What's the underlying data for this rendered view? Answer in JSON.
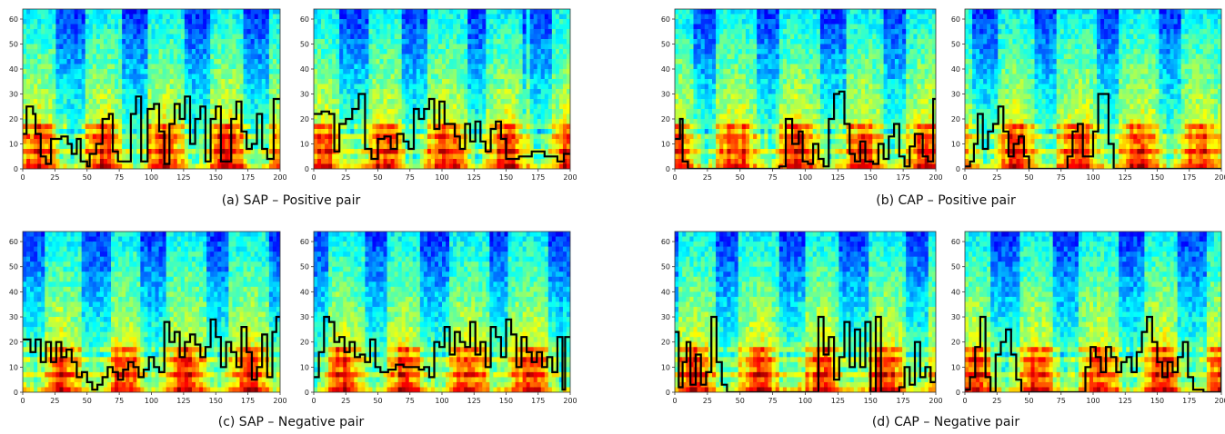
{
  "captions": {
    "a": "(a) SAP – Positive pair",
    "b": "(b) CAP – Positive pair",
    "c": "(c) SAP – Negative pair",
    "d": "(d) CAP – Negative pair"
  },
  "chart_data": [
    {
      "type": "heatmap",
      "group": "a",
      "xticks": [
        0,
        25,
        50,
        75,
        100,
        125,
        150,
        175,
        200
      ],
      "yticks": [
        0,
        10,
        20,
        30,
        40,
        50,
        60
      ],
      "xlim": [
        0,
        200
      ],
      "ylim": [
        0,
        64
      ],
      "curve": [
        [
          0,
          14
        ],
        [
          3,
          25
        ],
        [
          8,
          22
        ],
        [
          10,
          14
        ],
        [
          14,
          5
        ],
        [
          18,
          2
        ],
        [
          22,
          12
        ],
        [
          30,
          13
        ],
        [
          35,
          10
        ],
        [
          38,
          6
        ],
        [
          42,
          12
        ],
        [
          45,
          3
        ],
        [
          50,
          1
        ],
        [
          52,
          6
        ],
        [
          57,
          10
        ],
        [
          62,
          20
        ],
        [
          67,
          22
        ],
        [
          70,
          7
        ],
        [
          74,
          3
        ],
        [
          80,
          3
        ],
        [
          84,
          22
        ],
        [
          88,
          29
        ],
        [
          92,
          3
        ],
        [
          97,
          24
        ],
        [
          102,
          26
        ],
        [
          106,
          15
        ],
        [
          110,
          2
        ],
        [
          114,
          18
        ],
        [
          118,
          26
        ],
        [
          122,
          20
        ],
        [
          126,
          29
        ],
        [
          130,
          10
        ],
        [
          134,
          20
        ],
        [
          138,
          25
        ],
        [
          142,
          3
        ],
        [
          146,
          20
        ],
        [
          150,
          25
        ],
        [
          154,
          3
        ],
        [
          158,
          3
        ],
        [
          162,
          20
        ],
        [
          166,
          27
        ],
        [
          170,
          15
        ],
        [
          174,
          8
        ],
        [
          178,
          10
        ],
        [
          182,
          22
        ],
        [
          186,
          8
        ],
        [
          190,
          4
        ],
        [
          195,
          28
        ],
        [
          200,
          28
        ]
      ]
    },
    {
      "type": "heatmap",
      "group": "a",
      "xticks": [
        0,
        25,
        50,
        75,
        100,
        125,
        150,
        175,
        200
      ],
      "yticks": [
        0,
        10,
        20,
        30,
        40,
        50,
        60
      ],
      "xlim": [
        0,
        200
      ],
      "ylim": [
        0,
        64
      ],
      "curve": [
        [
          0,
          22
        ],
        [
          6,
          23
        ],
        [
          12,
          22
        ],
        [
          16,
          7
        ],
        [
          20,
          18
        ],
        [
          25,
          20
        ],
        [
          30,
          24
        ],
        [
          35,
          30
        ],
        [
          40,
          8
        ],
        [
          45,
          4
        ],
        [
          50,
          12
        ],
        [
          55,
          13
        ],
        [
          60,
          8
        ],
        [
          65,
          14
        ],
        [
          70,
          11
        ],
        [
          74,
          8
        ],
        [
          78,
          24
        ],
        [
          82,
          20
        ],
        [
          86,
          24
        ],
        [
          90,
          28
        ],
        [
          94,
          16
        ],
        [
          98,
          27
        ],
        [
          102,
          18
        ],
        [
          106,
          18
        ],
        [
          110,
          13
        ],
        [
          114,
          8
        ],
        [
          118,
          18
        ],
        [
          122,
          11
        ],
        [
          126,
          19
        ],
        [
          130,
          11
        ],
        [
          134,
          7
        ],
        [
          138,
          16
        ],
        [
          142,
          19
        ],
        [
          146,
          12
        ],
        [
          150,
          4
        ],
        [
          155,
          4
        ],
        [
          160,
          5
        ],
        [
          170,
          7
        ],
        [
          180,
          5
        ],
        [
          190,
          3
        ],
        [
          195,
          6
        ],
        [
          200,
          6
        ]
      ]
    },
    {
      "type": "heatmap",
      "group": "b",
      "xticks": [
        0,
        25,
        50,
        75,
        100,
        125,
        150,
        175,
        200
      ],
      "yticks": [
        0,
        10,
        20,
        30,
        40,
        50,
        60
      ],
      "xlim": [
        0,
        200
      ],
      "ylim": [
        0,
        64
      ],
      "curve": [
        [
          0,
          12
        ],
        [
          4,
          20
        ],
        [
          6,
          3
        ],
        [
          10,
          0
        ],
        [
          40,
          0
        ],
        [
          60,
          0
        ],
        [
          80,
          1
        ],
        [
          85,
          20
        ],
        [
          90,
          10
        ],
        [
          95,
          15
        ],
        [
          98,
          3
        ],
        [
          102,
          2
        ],
        [
          106,
          10
        ],
        [
          110,
          4
        ],
        [
          114,
          1
        ],
        [
          118,
          20
        ],
        [
          122,
          30
        ],
        [
          126,
          31
        ],
        [
          130,
          18
        ],
        [
          134,
          6
        ],
        [
          138,
          3
        ],
        [
          142,
          11
        ],
        [
          146,
          3
        ],
        [
          152,
          2
        ],
        [
          156,
          10
        ],
        [
          160,
          4
        ],
        [
          164,
          13
        ],
        [
          168,
          18
        ],
        [
          172,
          5
        ],
        [
          176,
          1
        ],
        [
          180,
          9
        ],
        [
          184,
          14
        ],
        [
          190,
          5
        ],
        [
          194,
          3
        ],
        [
          198,
          28
        ],
        [
          200,
          28
        ]
      ]
    },
    {
      "type": "heatmap",
      "group": "b",
      "xticks": [
        0,
        25,
        50,
        75,
        100,
        125,
        150,
        175,
        200
      ],
      "yticks": [
        0,
        10,
        20,
        30,
        40,
        50,
        60
      ],
      "xlim": [
        0,
        200
      ],
      "ylim": [
        0,
        64
      ],
      "curve": [
        [
          0,
          1
        ],
        [
          4,
          3
        ],
        [
          7,
          10
        ],
        [
          10,
          22
        ],
        [
          14,
          8
        ],
        [
          18,
          15
        ],
        [
          22,
          18
        ],
        [
          26,
          25
        ],
        [
          30,
          15
        ],
        [
          34,
          5
        ],
        [
          38,
          10
        ],
        [
          42,
          13
        ],
        [
          46,
          5
        ],
        [
          50,
          0
        ],
        [
          60,
          0
        ],
        [
          75,
          0
        ],
        [
          80,
          5
        ],
        [
          84,
          15
        ],
        [
          88,
          18
        ],
        [
          92,
          5
        ],
        [
          96,
          5
        ],
        [
          100,
          15
        ],
        [
          104,
          30
        ],
        [
          108,
          30
        ],
        [
          112,
          10
        ],
        [
          116,
          0
        ],
        [
          140,
          0
        ],
        [
          160,
          0
        ],
        [
          200,
          0
        ]
      ]
    },
    {
      "type": "heatmap",
      "group": "c",
      "xticks": [
        0,
        25,
        50,
        75,
        100,
        125,
        150,
        175,
        200
      ],
      "yticks": [
        0,
        10,
        20,
        30,
        40,
        50,
        60
      ],
      "xlim": [
        0,
        200
      ],
      "ylim": [
        0,
        64
      ],
      "curve": [
        [
          0,
          21
        ],
        [
          6,
          16
        ],
        [
          10,
          21
        ],
        [
          14,
          12
        ],
        [
          18,
          20
        ],
        [
          22,
          12
        ],
        [
          26,
          20
        ],
        [
          30,
          14
        ],
        [
          34,
          17
        ],
        [
          38,
          12
        ],
        [
          42,
          6
        ],
        [
          46,
          8
        ],
        [
          50,
          4
        ],
        [
          54,
          1
        ],
        [
          58,
          3
        ],
        [
          62,
          6
        ],
        [
          66,
          10
        ],
        [
          70,
          8
        ],
        [
          74,
          5
        ],
        [
          78,
          9
        ],
        [
          82,
          12
        ],
        [
          86,
          10
        ],
        [
          90,
          6
        ],
        [
          94,
          9
        ],
        [
          98,
          14
        ],
        [
          102,
          10
        ],
        [
          106,
          8
        ],
        [
          110,
          28
        ],
        [
          114,
          20
        ],
        [
          118,
          24
        ],
        [
          122,
          14
        ],
        [
          126,
          20
        ],
        [
          130,
          23
        ],
        [
          134,
          19
        ],
        [
          138,
          14
        ],
        [
          142,
          18
        ],
        [
          146,
          29
        ],
        [
          150,
          22
        ],
        [
          154,
          10
        ],
        [
          158,
          20
        ],
        [
          162,
          16
        ],
        [
          166,
          10
        ],
        [
          170,
          26
        ],
        [
          174,
          16
        ],
        [
          178,
          5
        ],
        [
          182,
          10
        ],
        [
          186,
          23
        ],
        [
          190,
          6
        ],
        [
          194,
          24
        ],
        [
          197,
          30
        ],
        [
          200,
          30
        ]
      ]
    },
    {
      "type": "heatmap",
      "group": "c",
      "xticks": [
        0,
        25,
        50,
        75,
        100,
        125,
        150,
        175,
        200
      ],
      "yticks": [
        0,
        10,
        20,
        30,
        40,
        50,
        60
      ],
      "xlim": [
        0,
        200
      ],
      "ylim": [
        0,
        64
      ],
      "curve": [
        [
          0,
          6
        ],
        [
          4,
          16
        ],
        [
          8,
          30
        ],
        [
          12,
          28
        ],
        [
          16,
          20
        ],
        [
          20,
          22
        ],
        [
          24,
          16
        ],
        [
          28,
          20
        ],
        [
          32,
          14
        ],
        [
          36,
          15
        ],
        [
          40,
          12
        ],
        [
          44,
          21
        ],
        [
          48,
          10
        ],
        [
          52,
          8
        ],
        [
          58,
          9
        ],
        [
          64,
          11
        ],
        [
          70,
          10
        ],
        [
          76,
          10
        ],
        [
          82,
          9
        ],
        [
          86,
          10
        ],
        [
          90,
          6
        ],
        [
          94,
          20
        ],
        [
          98,
          18
        ],
        [
          102,
          26
        ],
        [
          106,
          15
        ],
        [
          110,
          24
        ],
        [
          114,
          20
        ],
        [
          118,
          18
        ],
        [
          122,
          28
        ],
        [
          126,
          15
        ],
        [
          130,
          20
        ],
        [
          134,
          10
        ],
        [
          138,
          26
        ],
        [
          142,
          22
        ],
        [
          146,
          14
        ],
        [
          150,
          29
        ],
        [
          154,
          23
        ],
        [
          158,
          10
        ],
        [
          162,
          22
        ],
        [
          166,
          16
        ],
        [
          170,
          12
        ],
        [
          174,
          16
        ],
        [
          178,
          10
        ],
        [
          182,
          14
        ],
        [
          186,
          8
        ],
        [
          190,
          22
        ],
        [
          194,
          1
        ],
        [
          196,
          22
        ],
        [
          200,
          22
        ]
      ]
    },
    {
      "type": "heatmap",
      "group": "d",
      "xticks": [
        0,
        25,
        50,
        75,
        100,
        125,
        150,
        175,
        200
      ],
      "yticks": [
        0,
        10,
        20,
        30,
        40,
        50,
        60
      ],
      "xlim": [
        0,
        200
      ],
      "ylim": [
        0,
        64
      ],
      "curve": [
        [
          0,
          24
        ],
        [
          3,
          2
        ],
        [
          6,
          12
        ],
        [
          9,
          20
        ],
        [
          12,
          3
        ],
        [
          16,
          15
        ],
        [
          20,
          3
        ],
        [
          24,
          8
        ],
        [
          28,
          30
        ],
        [
          32,
          12
        ],
        [
          36,
          3
        ],
        [
          40,
          0
        ],
        [
          60,
          0
        ],
        [
          100,
          0
        ],
        [
          106,
          0
        ],
        [
          110,
          30
        ],
        [
          114,
          15
        ],
        [
          118,
          22
        ],
        [
          122,
          5
        ],
        [
          126,
          14
        ],
        [
          130,
          28
        ],
        [
          134,
          10
        ],
        [
          138,
          25
        ],
        [
          142,
          10
        ],
        [
          146,
          28
        ],
        [
          150,
          0
        ],
        [
          154,
          30
        ],
        [
          158,
          0
        ],
        [
          166,
          0
        ],
        [
          172,
          2
        ],
        [
          176,
          10
        ],
        [
          180,
          3
        ],
        [
          184,
          20
        ],
        [
          188,
          6
        ],
        [
          192,
          10
        ],
        [
          196,
          4
        ],
        [
          200,
          8
        ]
      ]
    },
    {
      "type": "heatmap",
      "group": "d",
      "xticks": [
        0,
        25,
        50,
        75,
        100,
        125,
        150,
        175,
        200
      ],
      "yticks": [
        0,
        10,
        20,
        30,
        40,
        50,
        60
      ],
      "xlim": [
        0,
        200
      ],
      "ylim": [
        0,
        64
      ],
      "curve": [
        [
          0,
          1
        ],
        [
          4,
          6
        ],
        [
          8,
          18
        ],
        [
          12,
          30
        ],
        [
          16,
          6
        ],
        [
          20,
          0
        ],
        [
          24,
          15
        ],
        [
          28,
          20
        ],
        [
          32,
          25
        ],
        [
          36,
          15
        ],
        [
          40,
          5
        ],
        [
          44,
          0
        ],
        [
          70,
          0
        ],
        [
          90,
          0
        ],
        [
          94,
          10
        ],
        [
          98,
          18
        ],
        [
          102,
          14
        ],
        [
          106,
          8
        ],
        [
          110,
          18
        ],
        [
          114,
          14
        ],
        [
          118,
          8
        ],
        [
          122,
          12
        ],
        [
          126,
          14
        ],
        [
          130,
          8
        ],
        [
          134,
          16
        ],
        [
          138,
          24
        ],
        [
          142,
          30
        ],
        [
          146,
          20
        ],
        [
          150,
          12
        ],
        [
          154,
          6
        ],
        [
          158,
          12
        ],
        [
          162,
          8
        ],
        [
          166,
          14
        ],
        [
          170,
          20
        ],
        [
          174,
          6
        ],
        [
          178,
          1
        ],
        [
          186,
          0
        ],
        [
          196,
          0
        ],
        [
          200,
          10
        ]
      ]
    }
  ]
}
